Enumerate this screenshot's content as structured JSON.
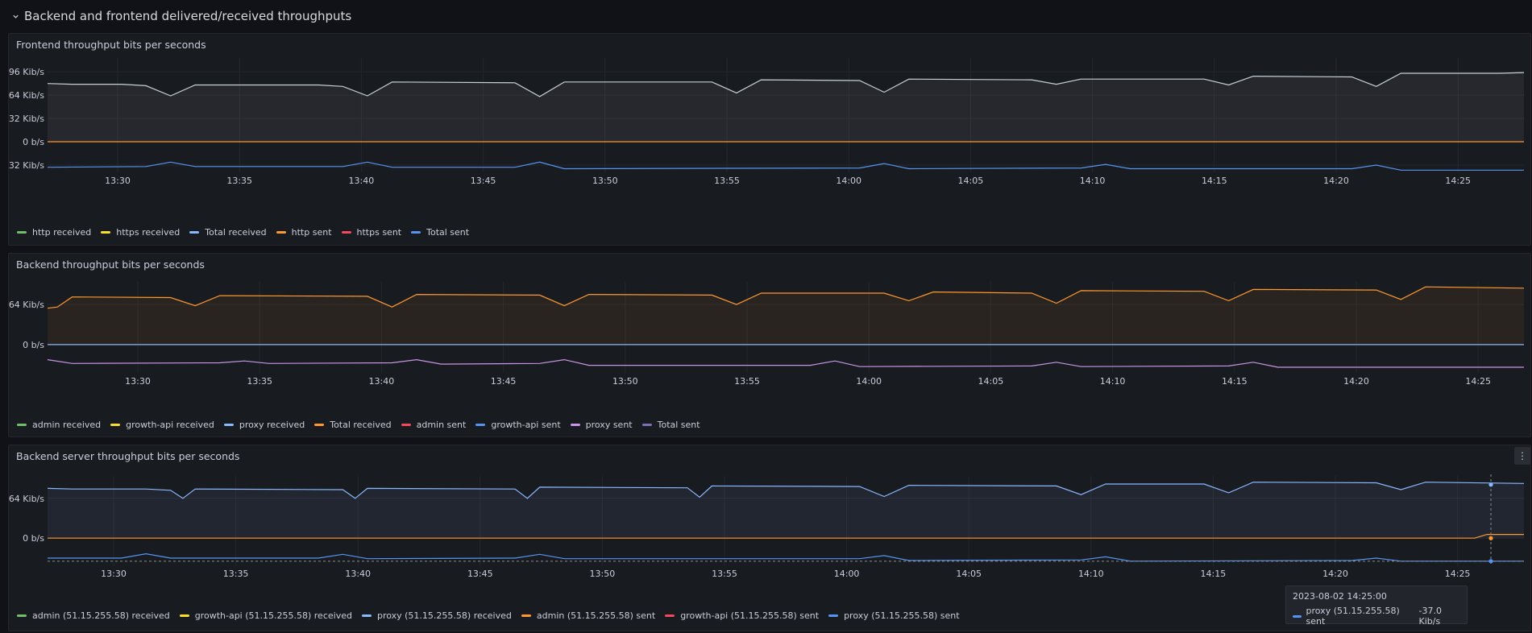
{
  "row": {
    "title": "Backend and frontend delivered/received throughputs"
  },
  "tooltip": {
    "time": "2023-08-02 14:25:00",
    "series": "proxy (51.15.255.58) sent",
    "value": "-37.0 Kib/s",
    "color": "#5794f2"
  },
  "chart_data": [
    {
      "type": "line",
      "title": "Frontend throughput bits per seconds",
      "unit": "Kib/s",
      "x_ticks": [
        "13:30",
        "13:35",
        "13:40",
        "13:45",
        "13:50",
        "13:55",
        "14:00",
        "14:05",
        "14:10",
        "14:15",
        "14:20",
        "14:25"
      ],
      "xlim": [
        "13:26",
        "14:26"
      ],
      "y_ticks": [
        96,
        64,
        32,
        0,
        -32
      ],
      "y_tick_labels": [
        "96 Kib/s",
        "64 Kib/s",
        "32 Kib/s",
        "0 b/s",
        "-32 Kib/s"
      ],
      "ylim": [
        -42,
        115
      ],
      "legend": [
        {
          "name": "http received",
          "color": "#73bf69"
        },
        {
          "name": "https received",
          "color": "#fade2a"
        },
        {
          "name": "Total received",
          "color": "#8ab8ff"
        },
        {
          "name": "http sent",
          "color": "#ff9830"
        },
        {
          "name": "https sent",
          "color": "#f2495c"
        },
        {
          "name": "Total sent",
          "color": "#5794f2"
        }
      ],
      "series": [
        {
          "name": "Total received",
          "color": "#c7d0d9",
          "fill": true,
          "values": [
            [
              0,
              80
            ],
            [
              1,
              79
            ],
            [
              3,
              79
            ],
            [
              4,
              77
            ],
            [
              5,
              63
            ],
            [
              6,
              78
            ],
            [
              11,
              78
            ],
            [
              12,
              76
            ],
            [
              13,
              63
            ],
            [
              14,
              82
            ],
            [
              19,
              81
            ],
            [
              20,
              62
            ],
            [
              21,
              82
            ],
            [
              27,
              82
            ],
            [
              28,
              67
            ],
            [
              29,
              85
            ],
            [
              33,
              84
            ],
            [
              34,
              68
            ],
            [
              35,
              86
            ],
            [
              40,
              85
            ],
            [
              41,
              79
            ],
            [
              42,
              86
            ],
            [
              47,
              86
            ],
            [
              48,
              78
            ],
            [
              49,
              90
            ],
            [
              53,
              89
            ],
            [
              54,
              76
            ],
            [
              55,
              94
            ],
            [
              59,
              94
            ],
            [
              60,
              95
            ]
          ]
        },
        {
          "name": "http sent",
          "color": "#ff9830",
          "values": [
            [
              0,
              0
            ],
            [
              60,
              0
            ]
          ]
        },
        {
          "name": "Total sent",
          "color": "#5794f2",
          "values": [
            [
              0,
              -35
            ],
            [
              4,
              -34
            ],
            [
              5,
              -28
            ],
            [
              6,
              -34
            ],
            [
              12,
              -34
            ],
            [
              13,
              -28
            ],
            [
              14,
              -35
            ],
            [
              19,
              -35
            ],
            [
              20,
              -28
            ],
            [
              21,
              -37
            ],
            [
              33,
              -36
            ],
            [
              34,
              -30
            ],
            [
              35,
              -37
            ],
            [
              42,
              -36
            ],
            [
              43,
              -31
            ],
            [
              44,
              -37
            ],
            [
              53,
              -37
            ],
            [
              54,
              -32
            ],
            [
              55,
              -39
            ],
            [
              60,
              -39
            ]
          ]
        }
      ]
    },
    {
      "type": "line",
      "title": "Backend throughput bits per seconds",
      "unit": "Kib/s",
      "x_ticks": [
        "13:30",
        "13:35",
        "13:40",
        "13:45",
        "13:50",
        "13:55",
        "14:00",
        "14:05",
        "14:10",
        "14:15",
        "14:20",
        "14:25"
      ],
      "xlim": [
        "13:26",
        "14:25"
      ],
      "y_ticks": [
        64,
        0
      ],
      "y_tick_labels": [
        "64 Kib/s",
        "0 b/s"
      ],
      "ylim": [
        -45,
        100
      ],
      "legend": [
        {
          "name": "admin received",
          "color": "#73bf69"
        },
        {
          "name": "growth-api received",
          "color": "#fade2a"
        },
        {
          "name": "proxy received",
          "color": "#8ab8ff"
        },
        {
          "name": "Total received",
          "color": "#ff9830"
        },
        {
          "name": "admin sent",
          "color": "#f2495c"
        },
        {
          "name": "growth-api sent",
          "color": "#5794f2"
        },
        {
          "name": "proxy sent",
          "color": "#ca95e5"
        },
        {
          "name": "Total sent",
          "color": "#806eb7"
        }
      ],
      "series": [
        {
          "name": "Total received",
          "color": "#ff9830",
          "fill": true,
          "values": [
            [
              0,
              58
            ],
            [
              0.4,
              60
            ],
            [
              1,
              76
            ],
            [
              5,
              75
            ],
            [
              6,
              62
            ],
            [
              7,
              78
            ],
            [
              13,
              77
            ],
            [
              14,
              60
            ],
            [
              15,
              80
            ],
            [
              20,
              79
            ],
            [
              21,
              62
            ],
            [
              22,
              80
            ],
            [
              27,
              79
            ],
            [
              28,
              64
            ],
            [
              29,
              82
            ],
            [
              34,
              82
            ],
            [
              35,
              70
            ],
            [
              36,
              84
            ],
            [
              40,
              82
            ],
            [
              41,
              66
            ],
            [
              42,
              86
            ],
            [
              47,
              85
            ],
            [
              48,
              70
            ],
            [
              49,
              88
            ],
            [
              54,
              87
            ],
            [
              55,
              72
            ],
            [
              56,
              92
            ],
            [
              60,
              90
            ]
          ]
        },
        {
          "name": "proxy received",
          "color": "#8ab8ff",
          "values": [
            [
              0,
              0
            ],
            [
              60,
              0
            ]
          ]
        },
        {
          "name": "proxy sent",
          "color": "#ca95e5",
          "values": [
            [
              0,
              -24
            ],
            [
              1,
              -30
            ],
            [
              7,
              -29
            ],
            [
              8,
              -26
            ],
            [
              9,
              -30
            ],
            [
              14,
              -29
            ],
            [
              15,
              -24
            ],
            [
              16,
              -31
            ],
            [
              20,
              -30
            ],
            [
              21,
              -24
            ],
            [
              22,
              -33
            ],
            [
              31,
              -33
            ],
            [
              32,
              -26
            ],
            [
              33,
              -35
            ],
            [
              40,
              -34
            ],
            [
              41,
              -28
            ],
            [
              42,
              -35
            ],
            [
              48,
              -34
            ],
            [
              49,
              -28
            ],
            [
              50,
              -36
            ],
            [
              60,
              -36
            ]
          ]
        }
      ]
    },
    {
      "type": "line",
      "title": "Backend server throughput bits per seconds",
      "unit": "Kib/s",
      "x_ticks": [
        "13:30",
        "13:35",
        "13:40",
        "13:45",
        "13:50",
        "13:55",
        "14:00",
        "14:05",
        "14:10",
        "14:15",
        "14:20",
        "14:25"
      ],
      "xlim": [
        "13:26",
        "14:26"
      ],
      "y_ticks": [
        64,
        0
      ],
      "y_tick_labels": [
        "64 Kib/s",
        "0 b/s"
      ],
      "ylim": [
        -45,
        100
      ],
      "legend": [
        {
          "name": "admin (51.15.255.58) received",
          "color": "#73bf69"
        },
        {
          "name": "growth-api (51.15.255.58) received",
          "color": "#fade2a"
        },
        {
          "name": "proxy (51.15.255.58) received",
          "color": "#8ab8ff"
        },
        {
          "name": "admin (51.15.255.58) sent",
          "color": "#ff9830"
        },
        {
          "name": "growth-api (51.15.255.58) sent",
          "color": "#f2495c"
        },
        {
          "name": "proxy (51.15.255.58) sent",
          "color": "#5794f2"
        }
      ],
      "series": [
        {
          "name": "proxy (51.15.255.58) received",
          "color": "#8ab8ff",
          "fill": true,
          "values": [
            [
              0,
              80
            ],
            [
              1,
              79
            ],
            [
              4,
              79
            ],
            [
              5,
              77
            ],
            [
              5.5,
              64
            ],
            [
              6,
              79
            ],
            [
              12,
              78
            ],
            [
              12.5,
              64
            ],
            [
              13,
              80
            ],
            [
              19,
              79
            ],
            [
              19.5,
              64
            ],
            [
              20,
              82
            ],
            [
              26,
              81
            ],
            [
              26.5,
              66
            ],
            [
              27,
              84
            ],
            [
              33,
              83
            ],
            [
              34,
              67
            ],
            [
              35,
              85
            ],
            [
              41,
              84
            ],
            [
              42,
              70
            ],
            [
              43,
              87
            ],
            [
              47,
              87
            ],
            [
              48,
              73
            ],
            [
              49,
              90
            ],
            [
              54,
              89
            ],
            [
              55,
              78
            ],
            [
              56,
              90
            ],
            [
              60,
              88
            ]
          ]
        },
        {
          "name": "admin (51.15.255.58) sent",
          "color": "#ff9830",
          "values": [
            [
              0,
              0
            ],
            [
              58,
              0
            ],
            [
              58.5,
              6
            ],
            [
              60,
              6
            ]
          ]
        },
        {
          "name": "proxy (51.15.255.58) sent",
          "color": "#5794f2",
          "values": [
            [
              0,
              -32
            ],
            [
              3,
              -32
            ],
            [
              4,
              -25
            ],
            [
              5,
              -32
            ],
            [
              11,
              -32
            ],
            [
              12,
              -26
            ],
            [
              13,
              -33
            ],
            [
              19,
              -32
            ],
            [
              20,
              -26
            ],
            [
              21,
              -33
            ],
            [
              33,
              -33
            ],
            [
              34,
              -28
            ],
            [
              35,
              -36
            ],
            [
              42,
              -35
            ],
            [
              43,
              -30
            ],
            [
              44,
              -37
            ],
            [
              53,
              -36
            ],
            [
              54,
              -32
            ],
            [
              55,
              -37
            ],
            [
              60,
              -37
            ]
          ]
        }
      ]
    }
  ]
}
